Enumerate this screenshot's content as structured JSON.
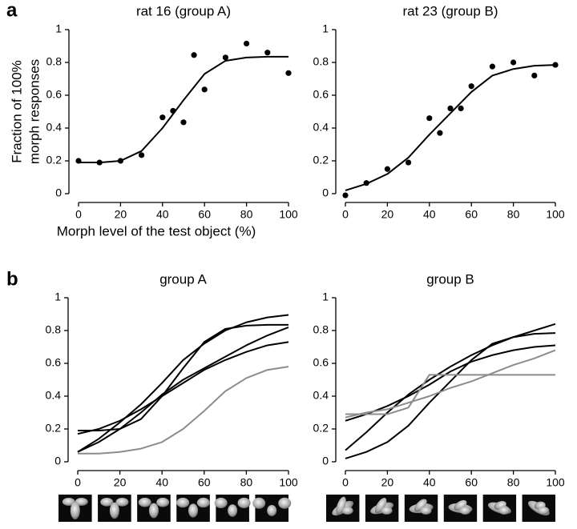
{
  "panel_labels": [
    "a",
    "b"
  ],
  "chart_data": [
    {
      "type": "scatter",
      "title": "rat 16 (group A)",
      "xlabel": "Morph level of the test object (%)",
      "ylabel": [
        "Fraction of 100%",
        "morph responses"
      ],
      "x": [
        0,
        10,
        20,
        30,
        40,
        45,
        50,
        55,
        60,
        70,
        80,
        90,
        100
      ],
      "values": [
        0.2,
        0.19,
        0.2,
        0.235,
        0.465,
        0.505,
        0.435,
        0.845,
        0.635,
        0.83,
        0.915,
        0.86,
        0.735
      ],
      "color": "#000000",
      "fit": {
        "x": [
          0,
          10,
          20,
          30,
          40,
          50,
          60,
          70,
          80,
          90,
          100
        ],
        "values": [
          0.19,
          0.19,
          0.2,
          0.26,
          0.4,
          0.57,
          0.73,
          0.81,
          0.83,
          0.835,
          0.835
        ]
      },
      "xlim": [
        0,
        100
      ],
      "ylim": [
        0,
        1
      ],
      "xticks": [
        0,
        20,
        40,
        60,
        80,
        100
      ],
      "yticks": [
        0,
        0.2,
        0.4,
        0.6,
        0.8,
        1
      ]
    },
    {
      "type": "scatter",
      "title": "rat 23 (group B)",
      "x": [
        0,
        10,
        20,
        30,
        40,
        45,
        50,
        55,
        60,
        70,
        80,
        90,
        100
      ],
      "values": [
        -0.01,
        0.065,
        0.15,
        0.19,
        0.46,
        0.37,
        0.52,
        0.52,
        0.655,
        0.775,
        0.8,
        0.72,
        0.785
      ],
      "color": "#000000",
      "fit": {
        "x": [
          0,
          10,
          20,
          30,
          40,
          50,
          60,
          70,
          80,
          90,
          100
        ],
        "values": [
          0.02,
          0.06,
          0.12,
          0.22,
          0.36,
          0.49,
          0.62,
          0.72,
          0.76,
          0.78,
          0.785
        ]
      },
      "xlim": [
        0,
        100
      ],
      "ylim": [
        0,
        1
      ],
      "xticks": [
        0,
        20,
        40,
        60,
        80,
        100
      ],
      "yticks": [
        0,
        0.2,
        0.4,
        0.6,
        0.8,
        1
      ]
    },
    {
      "type": "line",
      "title": "group A",
      "x": [
        0,
        10,
        20,
        30,
        40,
        50,
        60,
        70,
        80,
        90,
        100
      ],
      "series": [
        {
          "color": "#000000",
          "values": [
            0.19,
            0.19,
            0.2,
            0.26,
            0.4,
            0.57,
            0.73,
            0.81,
            0.83,
            0.835,
            0.835
          ]
        },
        {
          "color": "#000000",
          "values": [
            0.06,
            0.14,
            0.24,
            0.35,
            0.48,
            0.62,
            0.72,
            0.8,
            0.85,
            0.88,
            0.895
          ]
        },
        {
          "color": "#000000",
          "values": [
            0.17,
            0.2,
            0.25,
            0.32,
            0.4,
            0.48,
            0.56,
            0.62,
            0.67,
            0.71,
            0.73
          ]
        },
        {
          "color": "#000000",
          "values": [
            0.06,
            0.12,
            0.2,
            0.3,
            0.41,
            0.5,
            0.57,
            0.64,
            0.71,
            0.77,
            0.82
          ]
        },
        {
          "color": "#8c8c8c",
          "values": [
            0.05,
            0.05,
            0.06,
            0.08,
            0.12,
            0.2,
            0.31,
            0.43,
            0.51,
            0.56,
            0.58
          ]
        }
      ],
      "xlim": [
        0,
        100
      ],
      "ylim": [
        0,
        1
      ],
      "xticks": [
        0,
        20,
        40,
        60,
        80,
        100
      ],
      "yticks": [
        0,
        0.2,
        0.4,
        0.6,
        0.8,
        1
      ]
    },
    {
      "type": "line",
      "title": "group B",
      "x": [
        0,
        10,
        20,
        30,
        40,
        50,
        60,
        70,
        80,
        90,
        100
      ],
      "series": [
        {
          "color": "#000000",
          "values": [
            0.02,
            0.06,
            0.12,
            0.22,
            0.36,
            0.49,
            0.62,
            0.72,
            0.76,
            0.78,
            0.785
          ]
        },
        {
          "color": "#000000",
          "values": [
            0.07,
            0.18,
            0.3,
            0.41,
            0.5,
            0.58,
            0.65,
            0.71,
            0.76,
            0.8,
            0.84
          ]
        },
        {
          "color": "#000000",
          "values": [
            0.25,
            0.29,
            0.34,
            0.4,
            0.47,
            0.55,
            0.61,
            0.65,
            0.68,
            0.7,
            0.71
          ]
        },
        {
          "color": "#8c8c8c",
          "values": [
            0.27,
            0.3,
            0.32,
            0.36,
            0.4,
            0.45,
            0.49,
            0.54,
            0.59,
            0.63,
            0.68
          ]
        },
        {
          "color": "#8c8c8c",
          "values": [
            0.29,
            0.29,
            0.29,
            0.33,
            0.53,
            0.53,
            0.53,
            0.53,
            0.53,
            0.53,
            0.53
          ]
        }
      ],
      "xlim": [
        0,
        100
      ],
      "ylim": [
        0,
        1
      ],
      "xticks": [
        0,
        20,
        40,
        60,
        80,
        100
      ],
      "yticks": [
        0,
        0.2,
        0.4,
        0.6,
        0.8,
        1
      ]
    }
  ]
}
